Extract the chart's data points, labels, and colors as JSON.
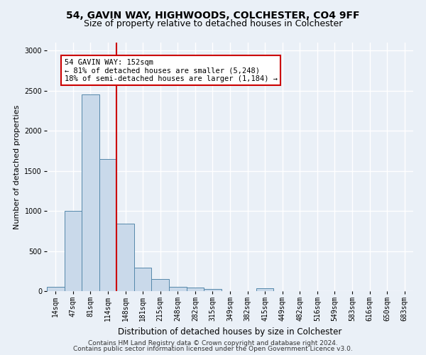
{
  "title1": "54, GAVIN WAY, HIGHWOODS, COLCHESTER, CO4 9FF",
  "title2": "Size of property relative to detached houses in Colchester",
  "xlabel": "Distribution of detached houses by size in Colchester",
  "ylabel": "Number of detached properties",
  "categories": [
    "14sqm",
    "47sqm",
    "81sqm",
    "114sqm",
    "148sqm",
    "181sqm",
    "215sqm",
    "248sqm",
    "282sqm",
    "315sqm",
    "349sqm",
    "382sqm",
    "415sqm",
    "449sqm",
    "482sqm",
    "516sqm",
    "549sqm",
    "583sqm",
    "616sqm",
    "650sqm",
    "683sqm"
  ],
  "values": [
    55,
    1000,
    2450,
    1650,
    840,
    290,
    150,
    55,
    40,
    30,
    0,
    0,
    35,
    0,
    0,
    0,
    0,
    0,
    0,
    0,
    0
  ],
  "bar_color": "#c9d9ea",
  "bar_edge_color": "#5588aa",
  "vline_x_index": 4,
  "vline_color": "#cc0000",
  "annotation_title": "54 GAVIN WAY: 152sqm",
  "annotation_line1": "← 81% of detached houses are smaller (5,248)",
  "annotation_line2": "18% of semi-detached houses are larger (1,184) →",
  "annotation_box_color": "#ffffff",
  "annotation_edge_color": "#cc0000",
  "ylim": [
    0,
    3100
  ],
  "yticks": [
    0,
    500,
    1000,
    1500,
    2000,
    2500,
    3000
  ],
  "footer1": "Contains HM Land Registry data © Crown copyright and database right 2024.",
  "footer2": "Contains public sector information licensed under the Open Government Licence v3.0.",
  "bg_color": "#eaf0f7",
  "grid_color": "#ffffff",
  "title1_fontsize": 10,
  "title2_fontsize": 9,
  "xlabel_fontsize": 8.5,
  "ylabel_fontsize": 8,
  "tick_fontsize": 7,
  "footer_fontsize": 6.5,
  "annotation_fontsize": 7.5
}
